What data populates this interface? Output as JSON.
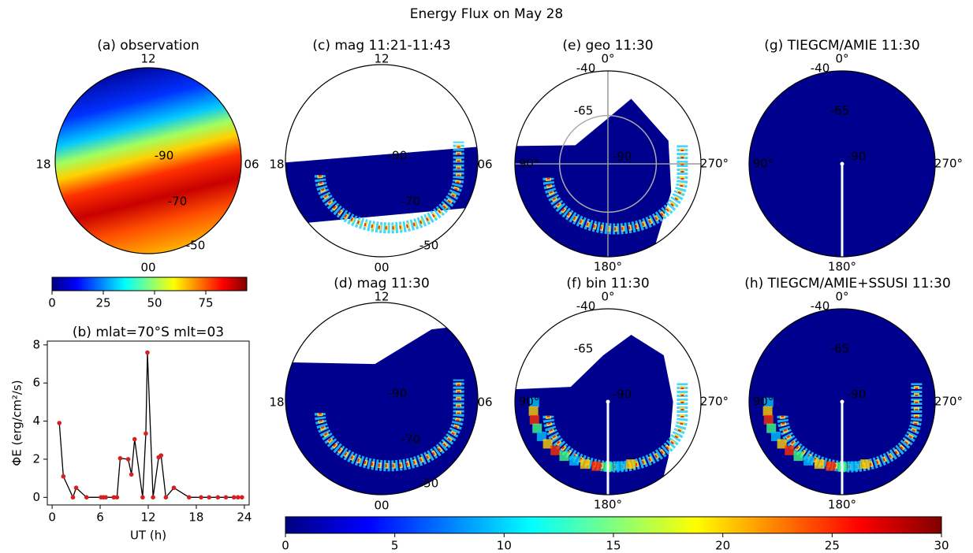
{
  "title": "Energy Flux on May 28",
  "chart_data": [
    {
      "type": "polar-map",
      "title": "(a) observation",
      "labels": [
        "12",
        "18",
        "06",
        "00",
        "-90",
        "-70",
        "-50"
      ]
    },
    {
      "type": "line",
      "title": "(b) mlat=70°S mlt=03",
      "xlabel": "UT (h)",
      "ylabel": "ΦE (erg/cm²/s)",
      "x": [
        0.9,
        1.4,
        2.6,
        3.0,
        4.3,
        6.1,
        6.4,
        6.7,
        7.7,
        8.1,
        8.5,
        9.5,
        9.9,
        10.3,
        11.3,
        11.7,
        11.9,
        12.6,
        13.3,
        13.6,
        14.2,
        15.2,
        17.1,
        18.6,
        19.6,
        20.7,
        21.7,
        22.7,
        23.2,
        23.7
      ],
      "series": [
        {
          "values": [
            3.9,
            1.1,
            0,
            0.5,
            0,
            0,
            0,
            0,
            0,
            0,
            2.05,
            2.0,
            1.2,
            3.05,
            0,
            3.35,
            7.6,
            0,
            2.1,
            2.2,
            0,
            0.5,
            0,
            0,
            0,
            0,
            0,
            0,
            0,
            0
          ],
          "color": "#000000",
          "marker_color": "#d62020"
        }
      ],
      "xlim": [
        -0.6,
        24.6
      ],
      "xticks": [
        0,
        6,
        12,
        18,
        24
      ],
      "ylim": [
        -0.4,
        8.2
      ],
      "yticks": [
        0,
        2,
        4,
        6,
        8
      ]
    },
    {
      "type": "colorbar",
      "colormap": "jet",
      "xlim": [
        0,
        95
      ],
      "xticks": [
        0,
        25,
        50,
        75
      ]
    },
    {
      "type": "polar-map",
      "title": "(c) mag 11:21-11:43",
      "labels": [
        "12",
        "18",
        "06",
        "00",
        "-90",
        "-70",
        "-50"
      ]
    },
    {
      "type": "polar-map",
      "title": "(d) mag 11:30",
      "labels": [
        "12",
        "18",
        "06",
        "00",
        "-90",
        "-70",
        "-50"
      ]
    },
    {
      "type": "polar-map",
      "title": "(e) geo 11:30",
      "labels": [
        "0°",
        "-40",
        "-65",
        "-90",
        "90°",
        "270°",
        "180°"
      ]
    },
    {
      "type": "polar-map",
      "title": "(f) bin 11:30",
      "labels": [
        "0°",
        "-40",
        "-65",
        "-90",
        "90°",
        "270°",
        "180°"
      ]
    },
    {
      "type": "polar-map",
      "title": "(g) TIEGCM/AMIE 11:30",
      "labels": [
        "0°",
        "-40",
        "-65",
        "-90",
        "90°",
        "270°",
        "180°"
      ]
    },
    {
      "type": "polar-map",
      "title": "(h) TIEGCM/AMIE+SSUSI 11:30",
      "labels": [
        "0°",
        "-40",
        "-65",
        "-90",
        "90°",
        "270°",
        "180°"
      ]
    },
    {
      "type": "colorbar",
      "colormap": "jet",
      "xlim": [
        0,
        30
      ],
      "xticks": [
        0,
        5,
        10,
        15,
        20,
        25,
        30
      ]
    }
  ]
}
